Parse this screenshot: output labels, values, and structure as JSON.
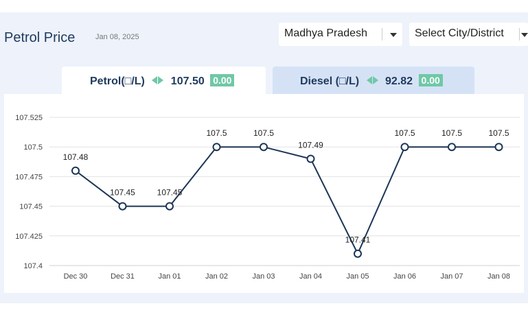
{
  "header": {
    "title": "Petrol Price",
    "date": "Jan 08, 2025"
  },
  "selects": {
    "state": "Madhya Pradesh",
    "city": "Select City/District"
  },
  "tabs": {
    "petrol": {
      "label": "Petrol(□/L)",
      "price": "107.50",
      "change": "0.00"
    },
    "diesel": {
      "label": "Diesel (□/L)",
      "price": "92.82",
      "change": "0.00"
    }
  },
  "colors": {
    "line": "#1c3556",
    "badge": "#6fc8a6",
    "grid": "#e2e2e2"
  },
  "chart_data": {
    "type": "line",
    "categories": [
      "Dec 30",
      "Dec 31",
      "Jan 01",
      "Jan 02",
      "Jan 03",
      "Jan 04",
      "Jan 05",
      "Jan 06",
      "Jan 07",
      "Jan 08"
    ],
    "values": [
      107.48,
      107.45,
      107.45,
      107.5,
      107.5,
      107.49,
      107.41,
      107.5,
      107.5,
      107.5
    ],
    "data_labels": [
      "107.48",
      "107.45",
      "107.45",
      "107.5",
      "107.5",
      "107.49",
      "107.41",
      "107.5",
      "107.5",
      "107.5"
    ],
    "yticks": [
      "107.4",
      "107.425",
      "107.45",
      "107.475",
      "107.5",
      "107.525"
    ],
    "ylim": [
      107.4,
      107.525
    ],
    "grid": true,
    "legend": "none"
  }
}
